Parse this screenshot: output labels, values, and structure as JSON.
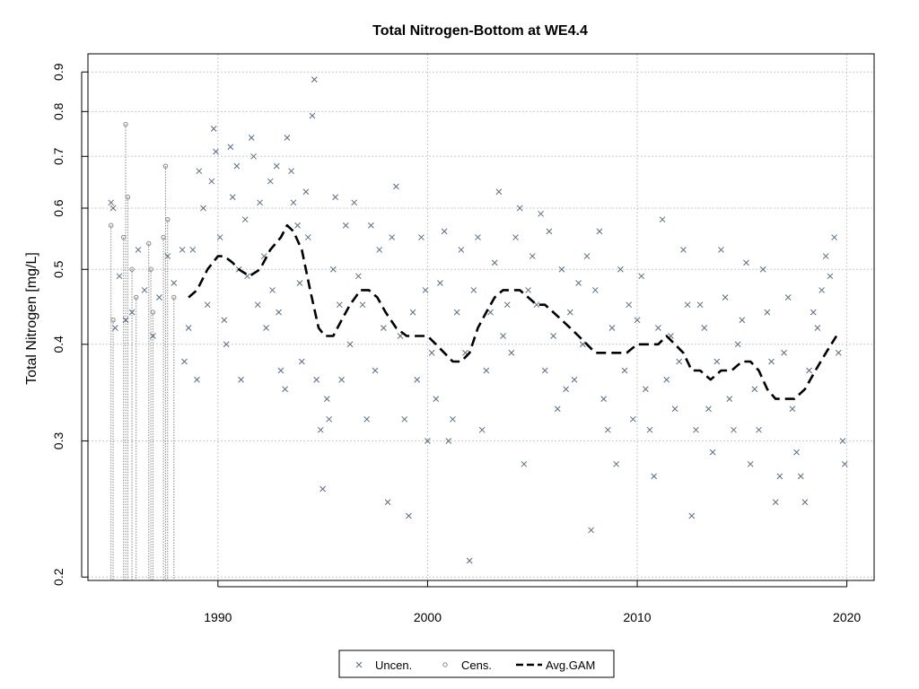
{
  "chart_data": {
    "type": "scatter",
    "title": "Total Nitrogen-Bottom at WE4.4",
    "xlabel": "",
    "ylabel": "Total Nitrogen [mg/L]",
    "x_scale": "date (year)",
    "y_scale": "log",
    "xlim": [
      1983.8,
      2021.3
    ],
    "ylim": [
      0.198,
      0.95
    ],
    "x_ticks": [
      1990,
      2000,
      2010,
      2020
    ],
    "x_tick_labels": [
      "1990",
      "2000",
      "2010",
      "2020"
    ],
    "y_ticks": [
      0.2,
      0.3,
      0.4,
      0.5,
      0.6,
      0.7,
      0.8,
      0.9
    ],
    "y_tick_labels": [
      "0.2",
      "0.3",
      "0.4",
      "0.5",
      "0.6",
      "0.7",
      "0.8",
      "0.9"
    ],
    "grid": true,
    "legend_position": "bottom-center",
    "legend": [
      {
        "label": "Uncen.",
        "marker": "x"
      },
      {
        "label": "Cens.",
        "marker": "circle"
      },
      {
        "label": "Avg.GAM",
        "marker": "dashed-line"
      }
    ],
    "colors": {
      "points": "#5a6a85",
      "censored": "#888888",
      "gam": "#000000",
      "grid": "#c8c8c8"
    },
    "series": [
      {
        "name": "Uncen.",
        "points": [
          [
            1984.9,
            0.61
          ],
          [
            1985.0,
            0.6
          ],
          [
            1985.1,
            0.42
          ],
          [
            1985.3,
            0.49
          ],
          [
            1985.6,
            0.43
          ],
          [
            1985.9,
            0.44
          ],
          [
            1986.2,
            0.53
          ],
          [
            1986.5,
            0.47
          ],
          [
            1986.9,
            0.41
          ],
          [
            1987.2,
            0.46
          ],
          [
            1987.6,
            0.52
          ],
          [
            1987.9,
            0.48
          ],
          [
            1988.3,
            0.53
          ],
          [
            1988.4,
            0.38
          ],
          [
            1988.6,
            0.42
          ],
          [
            1988.8,
            0.53
          ],
          [
            1989.0,
            0.36
          ],
          [
            1989.1,
            0.67
          ],
          [
            1989.3,
            0.6
          ],
          [
            1989.5,
            0.45
          ],
          [
            1989.7,
            0.65
          ],
          [
            1989.8,
            0.76
          ],
          [
            1989.9,
            0.71
          ],
          [
            1990.1,
            0.55
          ],
          [
            1990.3,
            0.43
          ],
          [
            1990.4,
            0.4
          ],
          [
            1990.6,
            0.72
          ],
          [
            1990.7,
            0.62
          ],
          [
            1990.9,
            0.68
          ],
          [
            1991.0,
            0.5
          ],
          [
            1991.1,
            0.36
          ],
          [
            1991.3,
            0.58
          ],
          [
            1991.4,
            0.49
          ],
          [
            1991.6,
            0.74
          ],
          [
            1991.7,
            0.7
          ],
          [
            1991.9,
            0.45
          ],
          [
            1992.0,
            0.61
          ],
          [
            1992.2,
            0.52
          ],
          [
            1992.3,
            0.42
          ],
          [
            1992.5,
            0.65
          ],
          [
            1992.6,
            0.47
          ],
          [
            1992.8,
            0.68
          ],
          [
            1992.9,
            0.44
          ],
          [
            1993.0,
            0.37
          ],
          [
            1993.2,
            0.35
          ],
          [
            1993.3,
            0.74
          ],
          [
            1993.5,
            0.67
          ],
          [
            1993.6,
            0.61
          ],
          [
            1993.8,
            0.57
          ],
          [
            1993.9,
            0.48
          ],
          [
            1994.0,
            0.38
          ],
          [
            1994.2,
            0.63
          ],
          [
            1994.3,
            0.55
          ],
          [
            1994.5,
            0.79
          ],
          [
            1994.6,
            0.88
          ],
          [
            1994.7,
            0.36
          ],
          [
            1994.9,
            0.31
          ],
          [
            1995.0,
            0.26
          ],
          [
            1995.2,
            0.34
          ],
          [
            1995.3,
            0.32
          ],
          [
            1995.5,
            0.5
          ],
          [
            1995.6,
            0.62
          ],
          [
            1995.8,
            0.45
          ],
          [
            1995.9,
            0.36
          ],
          [
            1996.1,
            0.57
          ],
          [
            1996.3,
            0.4
          ],
          [
            1996.5,
            0.61
          ],
          [
            1996.7,
            0.49
          ],
          [
            1996.9,
            0.45
          ],
          [
            1997.1,
            0.32
          ],
          [
            1997.3,
            0.57
          ],
          [
            1997.5,
            0.37
          ],
          [
            1997.7,
            0.53
          ],
          [
            1997.9,
            0.42
          ],
          [
            1998.1,
            0.25
          ],
          [
            1998.3,
            0.55
          ],
          [
            1998.5,
            0.64
          ],
          [
            1998.7,
            0.41
          ],
          [
            1998.9,
            0.32
          ],
          [
            1999.1,
            0.24
          ],
          [
            1999.3,
            0.44
          ],
          [
            1999.5,
            0.36
          ],
          [
            1999.7,
            0.55
          ],
          [
            1999.9,
            0.47
          ],
          [
            2000.0,
            0.3
          ],
          [
            2000.2,
            0.39
          ],
          [
            2000.4,
            0.34
          ],
          [
            2000.6,
            0.48
          ],
          [
            2000.8,
            0.56
          ],
          [
            2001.0,
            0.3
          ],
          [
            2001.2,
            0.32
          ],
          [
            2001.4,
            0.44
          ],
          [
            2001.6,
            0.53
          ],
          [
            2001.8,
            0.39
          ],
          [
            2002.0,
            0.21
          ],
          [
            2002.2,
            0.47
          ],
          [
            2002.4,
            0.55
          ],
          [
            2002.6,
            0.31
          ],
          [
            2002.8,
            0.37
          ],
          [
            2003.0,
            0.44
          ],
          [
            2003.2,
            0.51
          ],
          [
            2003.4,
            0.63
          ],
          [
            2003.6,
            0.41
          ],
          [
            2003.8,
            0.45
          ],
          [
            2004.0,
            0.39
          ],
          [
            2004.2,
            0.55
          ],
          [
            2004.4,
            0.6
          ],
          [
            2004.6,
            0.28
          ],
          [
            2004.8,
            0.47
          ],
          [
            2005.0,
            0.52
          ],
          [
            2005.2,
            0.45
          ],
          [
            2005.4,
            0.59
          ],
          [
            2005.6,
            0.37
          ],
          [
            2005.8,
            0.56
          ],
          [
            2006.0,
            0.41
          ],
          [
            2006.2,
            0.33
          ],
          [
            2006.4,
            0.5
          ],
          [
            2006.6,
            0.35
          ],
          [
            2006.8,
            0.44
          ],
          [
            2007.0,
            0.36
          ],
          [
            2007.2,
            0.48
          ],
          [
            2007.4,
            0.4
          ],
          [
            2007.6,
            0.52
          ],
          [
            2007.8,
            0.23
          ],
          [
            2008.0,
            0.47
          ],
          [
            2008.2,
            0.56
          ],
          [
            2008.4,
            0.34
          ],
          [
            2008.6,
            0.31
          ],
          [
            2008.8,
            0.42
          ],
          [
            2009.0,
            0.28
          ],
          [
            2009.2,
            0.5
          ],
          [
            2009.4,
            0.37
          ],
          [
            2009.6,
            0.45
          ],
          [
            2009.8,
            0.32
          ],
          [
            2010.0,
            0.43
          ],
          [
            2010.2,
            0.49
          ],
          [
            2010.4,
            0.35
          ],
          [
            2010.6,
            0.31
          ],
          [
            2010.8,
            0.27
          ],
          [
            2011.0,
            0.42
          ],
          [
            2011.2,
            0.58
          ],
          [
            2011.4,
            0.36
          ],
          [
            2011.6,
            0.41
          ],
          [
            2011.8,
            0.33
          ],
          [
            2012.0,
            0.38
          ],
          [
            2012.2,
            0.53
          ],
          [
            2012.4,
            0.45
          ],
          [
            2012.6,
            0.24
          ],
          [
            2012.8,
            0.31
          ],
          [
            2013.0,
            0.45
          ],
          [
            2013.2,
            0.42
          ],
          [
            2013.4,
            0.33
          ],
          [
            2013.6,
            0.29
          ],
          [
            2013.8,
            0.38
          ],
          [
            2014.0,
            0.53
          ],
          [
            2014.2,
            0.46
          ],
          [
            2014.4,
            0.34
          ],
          [
            2014.6,
            0.31
          ],
          [
            2014.8,
            0.4
          ],
          [
            2015.0,
            0.43
          ],
          [
            2015.2,
            0.51
          ],
          [
            2015.4,
            0.28
          ],
          [
            2015.6,
            0.35
          ],
          [
            2015.8,
            0.31
          ],
          [
            2016.0,
            0.5
          ],
          [
            2016.2,
            0.44
          ],
          [
            2016.4,
            0.38
          ],
          [
            2016.6,
            0.25
          ],
          [
            2016.8,
            0.27
          ],
          [
            2017.0,
            0.39
          ],
          [
            2017.2,
            0.46
          ],
          [
            2017.4,
            0.33
          ],
          [
            2017.6,
            0.29
          ],
          [
            2017.8,
            0.27
          ],
          [
            2018.0,
            0.25
          ],
          [
            2018.2,
            0.37
          ],
          [
            2018.4,
            0.44
          ],
          [
            2018.6,
            0.42
          ],
          [
            2018.8,
            0.47
          ],
          [
            2019.0,
            0.52
          ],
          [
            2019.2,
            0.49
          ],
          [
            2019.4,
            0.55
          ],
          [
            2019.6,
            0.39
          ],
          [
            2019.8,
            0.3
          ],
          [
            2019.9,
            0.28
          ]
        ]
      },
      {
        "name": "Cens.",
        "points": [
          [
            1984.9,
            0.57
          ],
          [
            1985.0,
            0.43
          ],
          [
            1985.5,
            0.55
          ],
          [
            1985.6,
            0.77
          ],
          [
            1985.7,
            0.62
          ],
          [
            1985.9,
            0.5
          ],
          [
            1986.1,
            0.46
          ],
          [
            1986.7,
            0.54
          ],
          [
            1986.8,
            0.5
          ],
          [
            1986.9,
            0.44
          ],
          [
            1987.4,
            0.55
          ],
          [
            1987.5,
            0.68
          ],
          [
            1987.6,
            0.58
          ],
          [
            1987.9,
            0.46
          ]
        ]
      },
      {
        "name": "Avg.GAM",
        "points": [
          [
            1988.6,
            0.46
          ],
          [
            1989.0,
            0.47
          ],
          [
            1989.5,
            0.5
          ],
          [
            1990.0,
            0.52
          ],
          [
            1990.3,
            0.52
          ],
          [
            1990.7,
            0.51
          ],
          [
            1991.0,
            0.5
          ],
          [
            1991.5,
            0.49
          ],
          [
            1992.0,
            0.5
          ],
          [
            1992.5,
            0.53
          ],
          [
            1993.0,
            0.55
          ],
          [
            1993.3,
            0.57
          ],
          [
            1993.6,
            0.56
          ],
          [
            1994.0,
            0.53
          ],
          [
            1994.4,
            0.47
          ],
          [
            1994.8,
            0.42
          ],
          [
            1995.1,
            0.41
          ],
          [
            1995.5,
            0.41
          ],
          [
            1995.9,
            0.43
          ],
          [
            1996.3,
            0.45
          ],
          [
            1996.8,
            0.47
          ],
          [
            1997.2,
            0.47
          ],
          [
            1997.6,
            0.46
          ],
          [
            1998.0,
            0.44
          ],
          [
            1998.5,
            0.42
          ],
          [
            1999.0,
            0.41
          ],
          [
            1999.5,
            0.41
          ],
          [
            2000.0,
            0.41
          ],
          [
            2000.4,
            0.4
          ],
          [
            2000.8,
            0.39
          ],
          [
            2001.2,
            0.38
          ],
          [
            2001.6,
            0.38
          ],
          [
            2002.0,
            0.39
          ],
          [
            2002.4,
            0.42
          ],
          [
            2002.8,
            0.44
          ],
          [
            2003.2,
            0.46
          ],
          [
            2003.6,
            0.47
          ],
          [
            2004.0,
            0.47
          ],
          [
            2004.4,
            0.47
          ],
          [
            2004.8,
            0.46
          ],
          [
            2005.2,
            0.45
          ],
          [
            2005.6,
            0.45
          ],
          [
            2006.0,
            0.44
          ],
          [
            2006.4,
            0.43
          ],
          [
            2006.8,
            0.42
          ],
          [
            2007.2,
            0.41
          ],
          [
            2007.6,
            0.4
          ],
          [
            2008.0,
            0.39
          ],
          [
            2008.5,
            0.39
          ],
          [
            2009.0,
            0.39
          ],
          [
            2009.5,
            0.39
          ],
          [
            2010.0,
            0.4
          ],
          [
            2010.5,
            0.4
          ],
          [
            2011.0,
            0.4
          ],
          [
            2011.4,
            0.41
          ],
          [
            2011.8,
            0.4
          ],
          [
            2012.2,
            0.39
          ],
          [
            2012.6,
            0.37
          ],
          [
            2013.0,
            0.37
          ],
          [
            2013.5,
            0.36
          ],
          [
            2014.0,
            0.37
          ],
          [
            2014.5,
            0.37
          ],
          [
            2015.0,
            0.38
          ],
          [
            2015.4,
            0.38
          ],
          [
            2015.8,
            0.37
          ],
          [
            2016.2,
            0.35
          ],
          [
            2016.6,
            0.34
          ],
          [
            2017.0,
            0.34
          ],
          [
            2017.5,
            0.34
          ],
          [
            2018.0,
            0.35
          ],
          [
            2018.5,
            0.37
          ],
          [
            2019.0,
            0.39
          ],
          [
            2019.5,
            0.41
          ]
        ]
      }
    ]
  }
}
